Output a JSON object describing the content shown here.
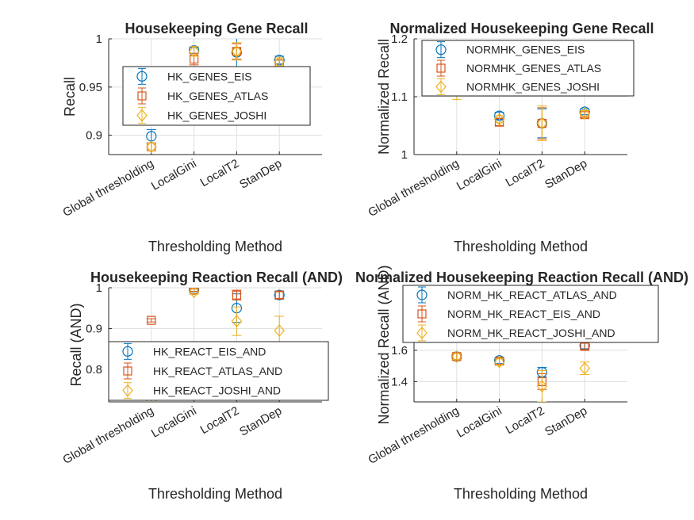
{
  "figure": {
    "background": "#ffffff"
  },
  "colors": {
    "s1": "#0072BD",
    "s2": "#D95319",
    "s3": "#EDB120",
    "grid": "#dfdfdf",
    "axis": "#262626"
  },
  "chart_data": [
    {
      "type": "scatter",
      "title": "Housekeeping Gene Recall",
      "xlabel": "Thresholding Method",
      "ylabel": "Recall",
      "categories": [
        "Global thresholding",
        "LocalGini",
        "LocalT2",
        "StanDep"
      ],
      "ylim": [
        0.88,
        1
      ],
      "yticks": [
        0.9,
        0.95,
        1
      ],
      "ytick_labels": [
        "0.9",
        "0.95",
        "1"
      ],
      "grid": true,
      "legend_position": "middle",
      "series": [
        {
          "name": "HK_GENES_EIS",
          "marker": "circle",
          "values": [
            0.899,
            0.988,
            0.986,
            0.978
          ],
          "err": [
            0.007,
            0.003,
            0.015,
            0.004
          ]
        },
        {
          "name": "HK_GENES_ATLAS",
          "marker": "square",
          "values": [
            0.888,
            0.979,
            0.987,
            0.974
          ],
          "err": [
            0.004,
            0.006,
            0.008,
            0.004
          ]
        },
        {
          "name": "HK_GENES_JOSHI",
          "marker": "diamond",
          "values": [
            0.888,
            0.987,
            0.987,
            0.976
          ],
          "err": [
            0.004,
            0.005,
            0.009,
            0.004
          ]
        }
      ]
    },
    {
      "type": "scatter",
      "title": "Normalized Housekeeping Gene Recall",
      "xlabel": "Thresholding Method",
      "ylabel": "Normalized Recall",
      "categories": [
        "Global thresholding",
        "LocalGini",
        "LocalT2",
        "StanDep"
      ],
      "ylim": [
        1,
        1.2
      ],
      "yticks": [
        1,
        1.1,
        1.2
      ],
      "ytick_labels": [
        "1",
        "1.1",
        "1.2"
      ],
      "grid": true,
      "legend_position": "top",
      "series": [
        {
          "name": "NORMHK_GENES_EIS",
          "marker": "circle",
          "values": [
            1.16,
            1.067,
            1.054,
            1.074
          ],
          "err": [
            0.01,
            0.006,
            0.025,
            0.005
          ]
        },
        {
          "name": "NORMHK_GENES_ATLAS",
          "marker": "square",
          "values": [
            1.16,
            1.056,
            1.054,
            1.069
          ],
          "err": [
            0.01,
            0.006,
            0.027,
            0.005
          ]
        },
        {
          "name": "NORMHK_GENES_JOSHI",
          "marker": "diamond",
          "values": [
            1.12,
            1.061,
            1.054,
            1.071
          ],
          "err": [
            0.025,
            0.006,
            0.03,
            0.005
          ]
        }
      ]
    },
    {
      "type": "scatter",
      "title": "Housekeeping Reaction Recall (AND)",
      "xlabel": "Thresholding Method",
      "ylabel": "Recall (AND)",
      "categories": [
        "Global thresholding",
        "LocalGini",
        "LocalT2",
        "StanDep"
      ],
      "ylim": [
        0.72,
        1
      ],
      "yticks": [
        0.8,
        0.9,
        1
      ],
      "ytick_labels": [
        "0.8",
        "0.9",
        "1"
      ],
      "grid": true,
      "legend_position": "bottom",
      "series": [
        {
          "name": "HK_REACT_EIS_AND",
          "marker": "circle",
          "values": [
            0.72,
            0.995,
            0.95,
            0.982
          ],
          "err": [
            0.005,
            0.005,
            0.035,
            0.01
          ]
        },
        {
          "name": "HK_REACT_ATLAS_AND",
          "marker": "square",
          "values": [
            0.92,
            0.995,
            0.982,
            0.982
          ],
          "err": [
            0.004,
            0.004,
            0.012,
            0.008
          ]
        },
        {
          "name": "HK_REACT_JOSHI_AND",
          "marker": "diamond",
          "values": [
            0.72,
            0.99,
            0.918,
            0.895
          ],
          "err": [
            0.005,
            0.006,
            0.035,
            0.035
          ]
        }
      ]
    },
    {
      "type": "scatter",
      "title": "Normalized Housekeeping Reaction Recall (AND)",
      "xlabel": "Thresholding Method",
      "ylabel": "Normalized Recall (AND)",
      "categories": [
        "Global thresholding",
        "LocalGini",
        "LocalT2",
        "StanDep"
      ],
      "ylim": [
        1.27,
        2.0
      ],
      "yticks": [
        1.4,
        1.6
      ],
      "ytick_labels": [
        "1.4",
        "1.6"
      ],
      "grid": true,
      "legend_position": "top",
      "series": [
        {
          "name": "NORM_HK_REACT_ATLAS_AND",
          "marker": "circle",
          "values": [
            1.56,
            1.535,
            1.46,
            1.63
          ],
          "err": [
            0.02,
            0.02,
            0.03,
            0.02
          ]
        },
        {
          "name": "NORM_HK_REACT_EIS_AND",
          "marker": "square",
          "values": [
            1.56,
            1.53,
            1.4,
            1.625
          ],
          "err": [
            0.02,
            0.02,
            0.05,
            0.02
          ]
        },
        {
          "name": "NORM_HK_REACT_JOSHI_AND",
          "marker": "diamond",
          "values": [
            1.56,
            1.525,
            1.37,
            1.485
          ],
          "err": [
            0.02,
            0.02,
            0.1,
            0.04
          ]
        }
      ]
    }
  ]
}
